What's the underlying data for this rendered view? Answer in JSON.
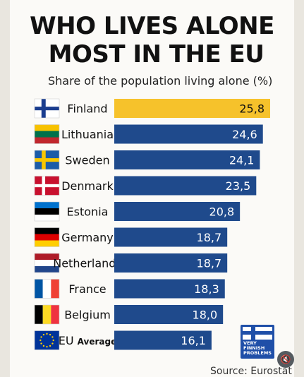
{
  "title_line1": "WHO LIVES ALONE",
  "title_line2": "MOST IN THE EU",
  "subtitle": "Share of the population living alone (%)",
  "source": "Source: Eurostat",
  "logo_text": "VERY\nFINNISH\nPROBLEMS",
  "mute_icon": "muted-speaker-icon",
  "chart_data": {
    "type": "bar",
    "orientation": "horizontal",
    "title": "WHO LIVES ALONE MOST IN THE EU",
    "subtitle": "Share of the population living alone (%)",
    "categories": [
      "Finland",
      "Lithuania",
      "Sweden",
      "Denmark",
      "Estonia",
      "Germany",
      "Netherlands",
      "France",
      "Belgium",
      "EU Average"
    ],
    "values": [
      25.8,
      24.6,
      24.1,
      23.5,
      20.8,
      18.7,
      18.7,
      18.3,
      18.0,
      16.1
    ],
    "value_labels": [
      "25,8",
      "24,6",
      "24,1",
      "23,5",
      "20,8",
      "18,7",
      "18,7",
      "18,3",
      "18,0",
      "16,1"
    ],
    "flags": [
      "finland",
      "lithuania",
      "sweden",
      "denmark",
      "estonia",
      "germany",
      "netherlands",
      "france",
      "belgium",
      "eu"
    ],
    "highlight_index": 0,
    "colors": {
      "bar": "#1f4a8c",
      "highlight": "#f6c22b",
      "label": "#ffffff"
    },
    "grid": false,
    "legend": "none"
  }
}
